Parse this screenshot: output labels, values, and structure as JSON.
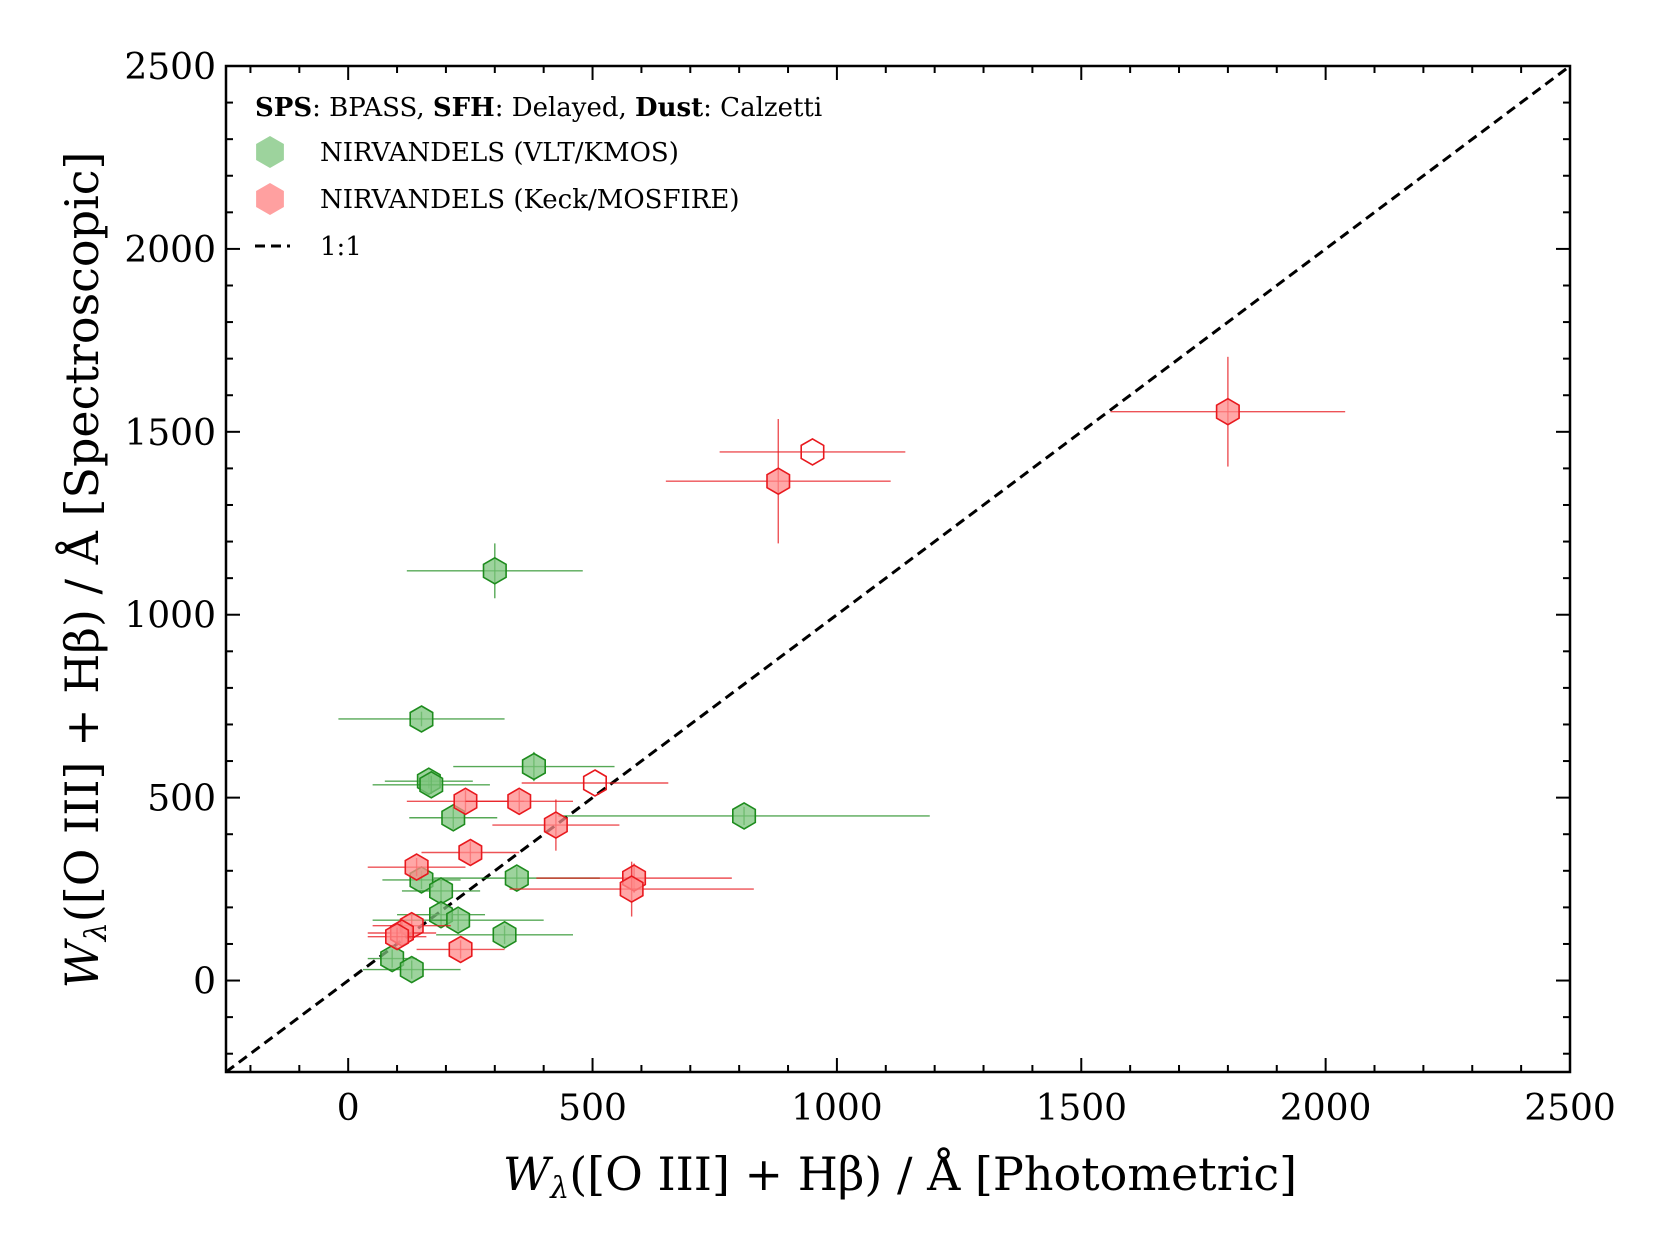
{
  "chart_data": {
    "type": "scatter",
    "title": "",
    "xlabel": {
      "main": "W",
      "sub": "λ",
      "rest": "([O III] + Hβ) / Å  [Photometric]"
    },
    "ylabel": {
      "main": "W",
      "sub": "λ",
      "rest": "([O III] + Hβ) / Å  [Spectroscopic]"
    },
    "xlim": [
      -250,
      2500
    ],
    "ylim": [
      -250,
      2500
    ],
    "xticks": [
      0,
      500,
      1000,
      1500,
      2000,
      2500
    ],
    "yticks": [
      0,
      500,
      1000,
      1500,
      2000,
      2500
    ],
    "xtick_labels": [
      "0",
      "500",
      "1000",
      "1500",
      "2000",
      "2500"
    ],
    "ytick_labels": [
      "0",
      "500",
      "1000",
      "1500",
      "2000",
      "2500"
    ],
    "legend": {
      "position": "top-left",
      "header": [
        {
          "text": "SPS",
          "bold": true
        },
        {
          "text": ": BPASS, ",
          "bold": false
        },
        {
          "text": "SFH",
          "bold": true
        },
        {
          "text": ": Delayed, ",
          "bold": false
        },
        {
          "text": "Dust",
          "bold": true
        },
        {
          "text": ":  Calzetti",
          "bold": false
        }
      ],
      "entries": [
        {
          "label": "NIRVANDELS (VLT/KMOS)",
          "marker": "hexagon",
          "color": "#7cc47c"
        },
        {
          "label": "NIRVANDELS (Keck/MOSFIRE)",
          "marker": "hexagon",
          "color": "#ff8080"
        },
        {
          "label": "1:1",
          "marker": "dashed-line",
          "color": "#000000"
        }
      ]
    },
    "one_to_one_line": [
      [
        -250,
        -250
      ],
      [
        2500,
        2500
      ]
    ],
    "series": [
      {
        "name": "NIRVANDELS (VLT/KMOS)",
        "color": "#1e8c1e",
        "fill": "#7cc47c",
        "points": [
          {
            "x": 300,
            "y": 1120,
            "xerr": 180,
            "yerr": 75
          },
          {
            "x": 150,
            "y": 715,
            "xerr": 170,
            "yerr": 20
          },
          {
            "x": 380,
            "y": 585,
            "xerr": 165,
            "yerr": 40
          },
          {
            "x": 165,
            "y": 545,
            "xerr": 90,
            "yerr": 20
          },
          {
            "x": 170,
            "y": 535,
            "xerr": 120,
            "yerr": 25
          },
          {
            "x": 810,
            "y": 450,
            "xerr": 380,
            "yerr": 25
          },
          {
            "x": 215,
            "y": 445,
            "xerr": 90,
            "yerr": 30
          },
          {
            "x": 345,
            "y": 280,
            "xerr": 170,
            "yerr": 30
          },
          {
            "x": 150,
            "y": 275,
            "xerr": 80,
            "yerr": 25
          },
          {
            "x": 190,
            "y": 245,
            "xerr": 80,
            "yerr": 30
          },
          {
            "x": 190,
            "y": 180,
            "xerr": 90,
            "yerr": 30
          },
          {
            "x": 225,
            "y": 165,
            "xerr": 175,
            "yerr": 30
          },
          {
            "x": 320,
            "y": 125,
            "xerr": 140,
            "yerr": 25
          },
          {
            "x": 90,
            "y": 60,
            "xerr": 50,
            "yerr": 25
          },
          {
            "x": 130,
            "y": 30,
            "xerr": 100,
            "yerr": 25
          }
        ]
      },
      {
        "name": "NIRVANDELS (Keck/MOSFIRE)",
        "color": "#e8191e",
        "fill": "#ff8a8a",
        "points": [
          {
            "x": 1800,
            "y": 1555,
            "xerr": 240,
            "yerr": 150,
            "open": false
          },
          {
            "x": 950,
            "y": 1445,
            "xerr": 190,
            "yerr": 0,
            "open": true
          },
          {
            "x": 880,
            "y": 1365,
            "xerr": 230,
            "yerr": 170,
            "open": false
          },
          {
            "x": 505,
            "y": 540,
            "xerr": 150,
            "yerr": 0,
            "open": true
          },
          {
            "x": 240,
            "y": 490,
            "xerr": 120,
            "yerr": 30,
            "open": false
          },
          {
            "x": 350,
            "y": 490,
            "xerr": 110,
            "yerr": 30,
            "open": false
          },
          {
            "x": 425,
            "y": 425,
            "xerr": 130,
            "yerr": 70,
            "open": false
          },
          {
            "x": 250,
            "y": 350,
            "xerr": 100,
            "yerr": 30,
            "open": false
          },
          {
            "x": 140,
            "y": 310,
            "xerr": 100,
            "yerr": 25,
            "open": false
          },
          {
            "x": 585,
            "y": 280,
            "xerr": 200,
            "yerr": 40,
            "open": false
          },
          {
            "x": 580,
            "y": 250,
            "xerr": 250,
            "yerr": 75,
            "open": false
          },
          {
            "x": 130,
            "y": 150,
            "xerr": 80,
            "yerr": 30,
            "open": false
          },
          {
            "x": 110,
            "y": 130,
            "xerr": 70,
            "yerr": 30,
            "open": false
          },
          {
            "x": 100,
            "y": 120,
            "xerr": 60,
            "yerr": 25,
            "open": false
          },
          {
            "x": 230,
            "y": 85,
            "xerr": 90,
            "yerr": 25,
            "open": false
          }
        ]
      }
    ]
  }
}
